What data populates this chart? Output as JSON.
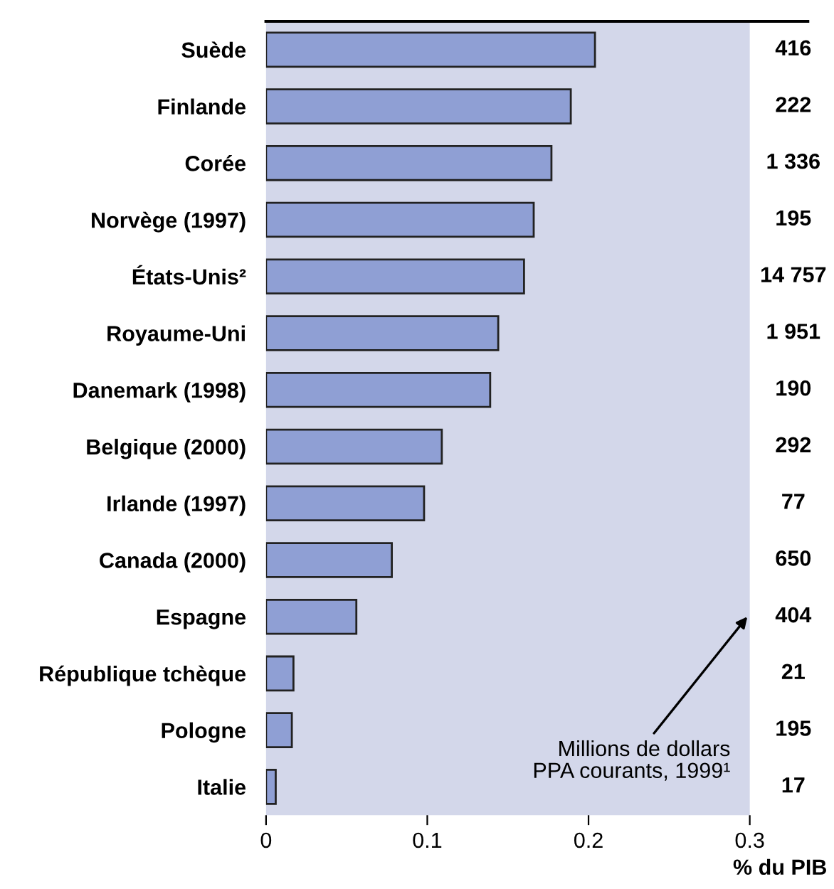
{
  "chart_data": {
    "type": "bar",
    "orientation": "horizontal",
    "categories": [
      "Suède",
      "Finlande",
      "Corée",
      "Norvège (1997)",
      "États-Unis²",
      "Royaume-Uni",
      "Danemark (1998)",
      "Belgique (2000)",
      "Irlande (1997)",
      "Canada (2000)",
      "Espagne",
      "République tchèque",
      "Pologne",
      "Italie"
    ],
    "values": [
      0.204,
      0.189,
      0.177,
      0.166,
      0.16,
      0.144,
      0.139,
      0.109,
      0.098,
      0.078,
      0.056,
      0.017,
      0.016,
      0.006
    ],
    "color": "#8f9fd4",
    "xlim": [
      0,
      0.3
    ],
    "xticks": [
      0,
      0.1,
      0.2,
      0.3
    ],
    "xlabel": "% du PIB",
    "grid": false,
    "annotations": [
      "416",
      "222",
      "1 336",
      "195",
      "14 757",
      "1 951",
      "190",
      "292",
      "77",
      "650",
      "404",
      "21",
      "195",
      "17",
      "Millions de dollars\nPPA courants, 1999¹"
    ]
  }
}
